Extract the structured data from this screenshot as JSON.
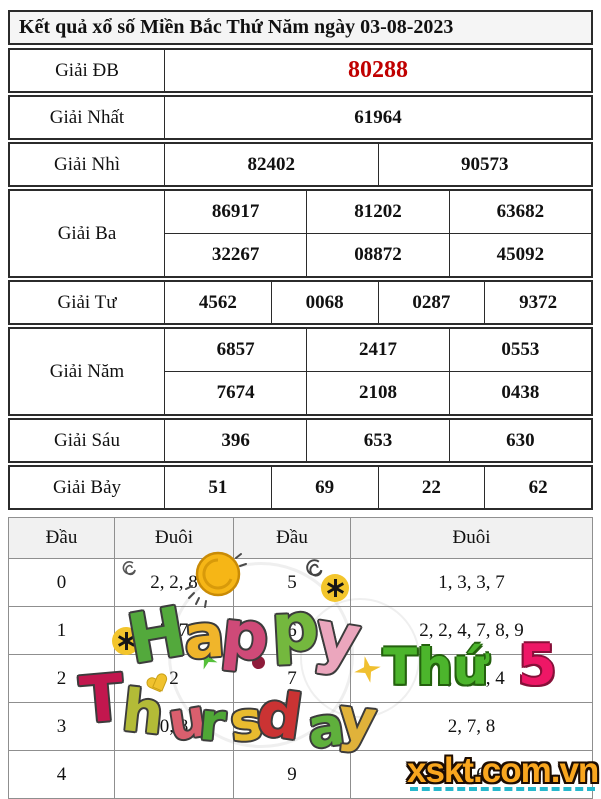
{
  "title": "Kết quả xổ số Miền Bắc Thứ Năm ngày 03-08-2023",
  "colors": {
    "special_prize": "#c00000",
    "title_bg": "#f5f5f5",
    "header_bg": "#f1f1f1",
    "grid_border": "#8f8f8f",
    "watermark_orange": "#f9a61e",
    "watermark_underline": "#27b7cc",
    "thu_green": "#4cb52c",
    "five_pink": "#ee1766"
  },
  "prizes": {
    "db": {
      "label": "Giải ĐB",
      "value": "80288"
    },
    "nhat": {
      "label": "Giải Nhất",
      "value": "61964"
    },
    "nhi": {
      "label": "Giải Nhì",
      "values": [
        "82402",
        "90573"
      ]
    },
    "ba": {
      "label": "Giải Ba",
      "row1": [
        "86917",
        "81202",
        "63682"
      ],
      "row2": [
        "32267",
        "08872",
        "45092"
      ]
    },
    "tu": {
      "label": "Giải Tư",
      "values": [
        "4562",
        "0068",
        "0287",
        "9372"
      ]
    },
    "nam": {
      "label": "Giải Năm",
      "row1": [
        "6857",
        "2417",
        "0553"
      ],
      "row2": [
        "7674",
        "2108",
        "0438"
      ]
    },
    "sau": {
      "label": "Giải Sáu",
      "values": [
        "396",
        "653",
        "630"
      ]
    },
    "bay": {
      "label": "Giải Bảy",
      "values": [
        "51",
        "69",
        "22",
        "62"
      ]
    }
  },
  "head_tail": {
    "headers": [
      "Đầu",
      "Đuôi",
      "Đầu",
      "Đuôi"
    ],
    "rows": [
      [
        "0",
        "2, 2, 8",
        "5",
        "1, 3, 3, 7"
      ],
      [
        "1",
        "7, 7",
        "6",
        "2, 2, 4, 7, 8, 9"
      ],
      [
        "2",
        "2",
        "7",
        "2, 2, 3, 4"
      ],
      [
        "3",
        "0, 8",
        "8",
        "2, 7, 8"
      ],
      [
        "4",
        "",
        "9",
        "2, 6"
      ]
    ]
  },
  "overlay": {
    "happy_letters": [
      {
        "ch": "H",
        "color": "#53a93c"
      },
      {
        "ch": "a",
        "color": "#f0b52b"
      },
      {
        "ch": "p",
        "color": "#cf4a78"
      },
      {
        "ch": "p",
        "color": "#74b83e"
      },
      {
        "ch": "y",
        "color": "#eba6bd"
      }
    ],
    "thursday_letters": [
      {
        "ch": "T",
        "color": "#c2174e"
      },
      {
        "ch": "h",
        "color": "#b3bb37"
      },
      {
        "ch": "u",
        "color": "#d95f6e"
      },
      {
        "ch": "r",
        "color": "#4fa736"
      },
      {
        "ch": "s",
        "color": "#e8bb2f"
      },
      {
        "ch": "d",
        "color": "#cb3333"
      },
      {
        "ch": "a",
        "color": "#5fb03c"
      },
      {
        "ch": "y",
        "color": "#e0b23a"
      }
    ],
    "thu_label": "Thứ",
    "thu_number": "5",
    "watermark": "xskt.com.vn"
  }
}
